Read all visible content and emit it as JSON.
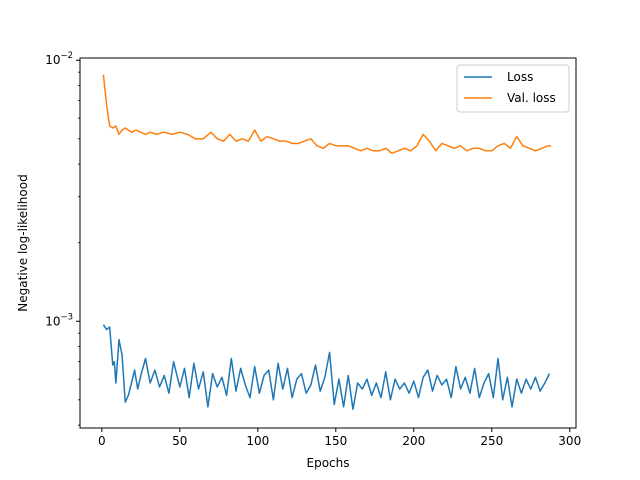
{
  "chart_data": {
    "type": "line",
    "xlabel": "Epochs",
    "ylabel": "Negative log-likelihood",
    "xlim": [
      -14,
      304
    ],
    "ylim": [
      0.00039,
      0.0102
    ],
    "yscale": "log",
    "grid": false,
    "legend_position": "top-right",
    "x_ticks": [
      {
        "value": 0,
        "label": "0"
      },
      {
        "value": 50,
        "label": "50"
      },
      {
        "value": 100,
        "label": "100"
      },
      {
        "value": 150,
        "label": "150"
      },
      {
        "value": 200,
        "label": "200"
      },
      {
        "value": 250,
        "label": "250"
      },
      {
        "value": 300,
        "label": "300"
      }
    ],
    "y_major_ticks": [
      {
        "value": 0.001,
        "label_base": "10",
        "label_exp": "−3"
      },
      {
        "value": 0.01,
        "label_base": "10",
        "label_exp": "−2"
      }
    ],
    "y_minor_ticks": [
      0.0004,
      0.0005,
      0.0006,
      0.0007,
      0.0008,
      0.0009,
      0.002,
      0.003,
      0.004,
      0.005,
      0.006,
      0.007,
      0.008,
      0.009
    ],
    "series": [
      {
        "name": "Loss",
        "color": "#1f77b4",
        "x": [
          1,
          3,
          5,
          7,
          8,
          9,
          11,
          13,
          15,
          17,
          19,
          21,
          23,
          25,
          28,
          31,
          34,
          37,
          40,
          43,
          46,
          50,
          53,
          56,
          59,
          62,
          65,
          68,
          71,
          74,
          77,
          80,
          83,
          86,
          89,
          92,
          95,
          98,
          101,
          104,
          107,
          110,
          113,
          116,
          119,
          122,
          125,
          128,
          131,
          134,
          137,
          140,
          143,
          146,
          149,
          152,
          155,
          158,
          161,
          164,
          167,
          170,
          173,
          176,
          179,
          182,
          185,
          188,
          191,
          194,
          197,
          200,
          203,
          206,
          209,
          212,
          215,
          218,
          221,
          224,
          227,
          230,
          233,
          236,
          239,
          242,
          245,
          248,
          251,
          254,
          257,
          260,
          263,
          266,
          269,
          272,
          275,
          278,
          281,
          284,
          287
        ],
        "values": [
          0.00097,
          0.00093,
          0.00095,
          0.00068,
          0.0007,
          0.00058,
          0.00085,
          0.00074,
          0.00049,
          0.00052,
          0.00058,
          0.00065,
          0.00055,
          0.00062,
          0.00072,
          0.00058,
          0.00065,
          0.00056,
          0.00062,
          0.00053,
          0.0007,
          0.00056,
          0.00066,
          0.00051,
          0.00069,
          0.00055,
          0.00064,
          0.00047,
          0.00063,
          0.00056,
          0.00061,
          0.00052,
          0.00072,
          0.00054,
          0.00066,
          0.00057,
          0.00051,
          0.00067,
          0.00053,
          0.00062,
          0.00065,
          0.0005,
          0.00069,
          0.00055,
          0.00066,
          0.00051,
          0.0006,
          0.00063,
          0.00053,
          0.00057,
          0.00068,
          0.00054,
          0.00061,
          0.00076,
          0.00048,
          0.0006,
          0.00047,
          0.00062,
          0.00046,
          0.00058,
          0.00055,
          0.0006,
          0.00052,
          0.00058,
          0.00051,
          0.00064,
          0.0005,
          0.0006,
          0.00055,
          0.00058,
          0.00053,
          0.00059,
          0.00051,
          0.00061,
          0.00065,
          0.00054,
          0.00062,
          0.00057,
          0.0006,
          0.00051,
          0.00067,
          0.00055,
          0.00061,
          0.00053,
          0.00066,
          0.00051,
          0.00058,
          0.00063,
          0.00051,
          0.00072,
          0.0005,
          0.00061,
          0.00047,
          0.0006,
          0.00053,
          0.0006,
          0.00055,
          0.00061,
          0.00054,
          0.00058,
          0.00063
        ]
      },
      {
        "name": "Val. loss",
        "color": "#ff7f0e",
        "x": [
          1,
          3,
          5,
          7,
          9,
          11,
          13,
          15,
          17,
          19,
          22,
          25,
          28,
          31,
          35,
          40,
          45,
          50,
          55,
          60,
          65,
          70,
          74,
          78,
          82,
          86,
          90,
          94,
          98,
          102,
          106,
          110,
          114,
          118,
          122,
          126,
          130,
          134,
          138,
          142,
          146,
          150,
          154,
          158,
          162,
          166,
          170,
          174,
          178,
          182,
          186,
          190,
          194,
          198,
          202,
          206,
          210,
          214,
          218,
          222,
          226,
          230,
          234,
          238,
          242,
          246,
          250,
          254,
          258,
          262,
          266,
          270,
          274,
          278,
          282,
          286,
          288
        ],
        "values": [
          0.0088,
          0.0068,
          0.0056,
          0.0055,
          0.0056,
          0.0052,
          0.0054,
          0.0055,
          0.0054,
          0.0053,
          0.0054,
          0.0053,
          0.0052,
          0.0053,
          0.0052,
          0.0053,
          0.0052,
          0.0053,
          0.0052,
          0.005,
          0.005,
          0.0053,
          0.005,
          0.0049,
          0.0052,
          0.0049,
          0.005,
          0.0049,
          0.0054,
          0.0049,
          0.0051,
          0.005,
          0.0049,
          0.0049,
          0.0048,
          0.0048,
          0.0049,
          0.005,
          0.0047,
          0.0046,
          0.0048,
          0.0047,
          0.0047,
          0.0047,
          0.0046,
          0.0045,
          0.0046,
          0.0045,
          0.0045,
          0.0046,
          0.0044,
          0.0045,
          0.0046,
          0.0045,
          0.0047,
          0.0052,
          0.0049,
          0.0045,
          0.0048,
          0.0047,
          0.0046,
          0.0047,
          0.0045,
          0.0046,
          0.0046,
          0.0045,
          0.0045,
          0.0047,
          0.0048,
          0.0046,
          0.0051,
          0.0047,
          0.0046,
          0.0045,
          0.0046,
          0.0047,
          0.0047
        ]
      }
    ]
  }
}
